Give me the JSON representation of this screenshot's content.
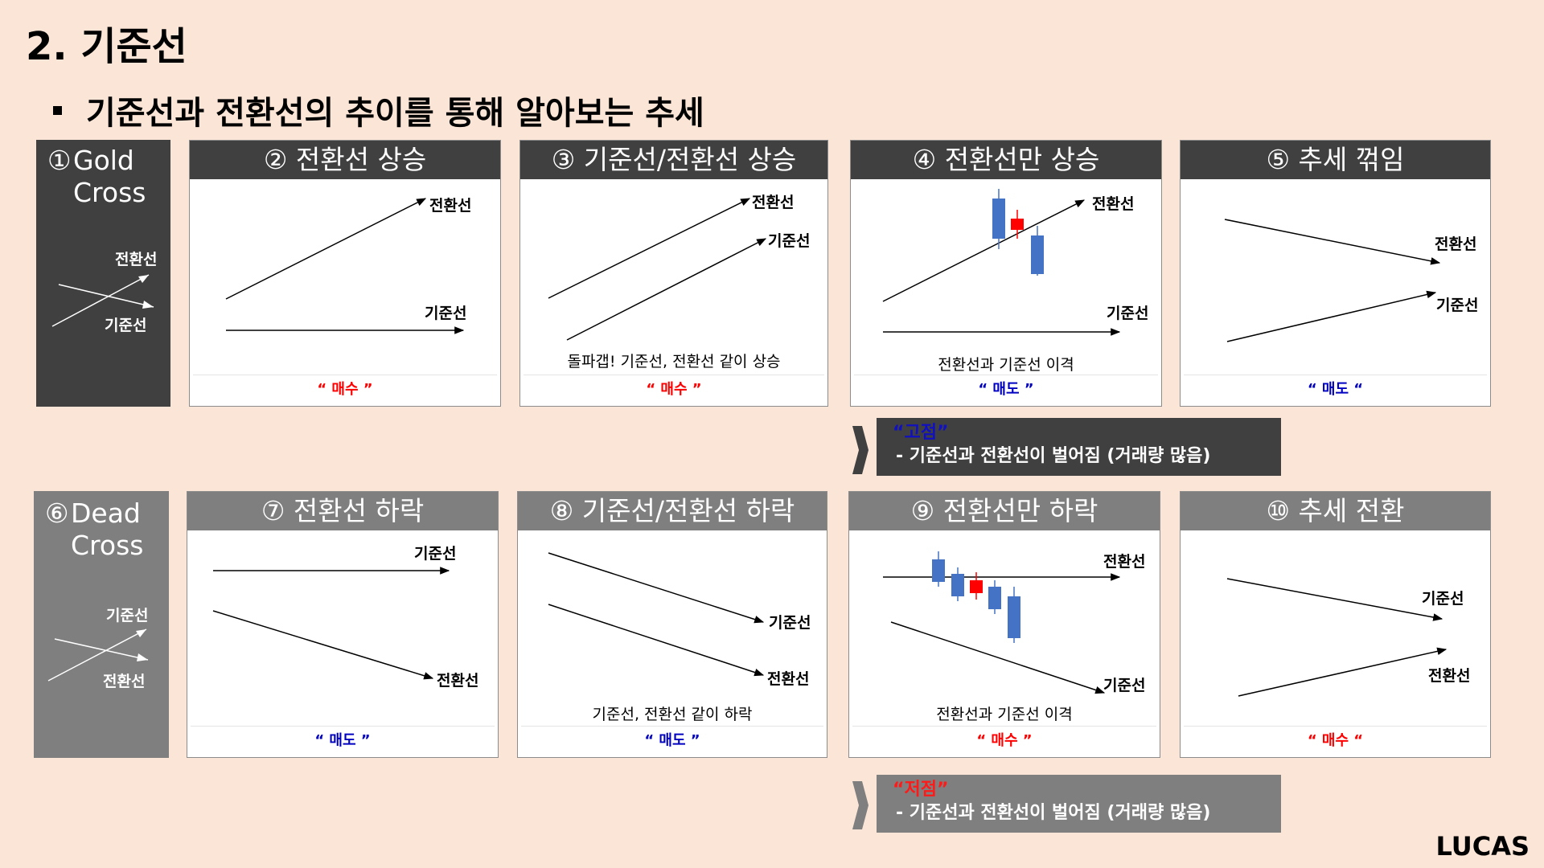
{
  "title": "2. 기준선",
  "subtitle": "기준선과 전환선의 추이를 통해 알아보는 추세",
  "gold": {
    "num": "①",
    "line1": "Gold",
    "line2": "Cross",
    "upper": "전환선",
    "lower": "기준선"
  },
  "dead": {
    "num": "⑥",
    "line1": "Dead",
    "line2": "Cross",
    "upper": "기준선",
    "lower": "전환선"
  },
  "panels": [
    {
      "header": "② 전환선 상승",
      "lineA": "전환선",
      "lineB": "기준선",
      "caption": "",
      "signal": "“ 매수 ”"
    },
    {
      "header": "③ 기준선/전환선 상승",
      "lineA": "전환선",
      "lineB": "기준선",
      "caption": "돌파갭! 기준선, 전환선 같이 상승",
      "signal": "“ 매수 ”"
    },
    {
      "header": "④ 전환선만 상승",
      "lineA": "전환선",
      "lineB": "기준선",
      "caption": "전환선과 기준선 이격",
      "signal": "“ 매도 ”"
    },
    {
      "header": "⑤ 추세 꺾임",
      "lineA": "전환선",
      "lineB": "기준선",
      "caption": "",
      "signal": "“ 매도 “"
    },
    {
      "header": "⑦ 전환선 하락",
      "lineA": "기준선",
      "lineB": "전환선",
      "caption": "",
      "signal": "“ 매도 ”"
    },
    {
      "header": "⑧ 기준선/전환선 하락",
      "lineA": "기준선",
      "lineB": "전환선",
      "caption": "기준선, 전환선 같이 하락",
      "signal": "“ 매도 ”"
    },
    {
      "header": "⑨ 전환선만 하락",
      "lineA": "전환선",
      "lineB": "기준선",
      "caption": "전환선과 기준선 이격",
      "signal": "“ 매수 ”"
    },
    {
      "header": "⑩ 추세 전환",
      "lineA": "기준선",
      "lineB": "전환선",
      "caption": "",
      "signal": "“ 매수 “"
    }
  ],
  "notes": {
    "top": {
      "tag": "“고점”",
      "text": "- 기준선과 전환선이 벌어짐 (거래량 많음)"
    },
    "bottom": {
      "tag": "“저점”",
      "text": "- 기준선과 전환선이 벌어짐 (거래량 많음)"
    }
  },
  "brand": "LUCAS",
  "colors": {
    "background": "#fbe5d6",
    "dark_header": "#404040",
    "gray_header": "#7f7f7f",
    "buy": "#ff0000",
    "sell": "#0000c0",
    "candle_up": "#ff0000",
    "candle_down": "#4472c4"
  }
}
